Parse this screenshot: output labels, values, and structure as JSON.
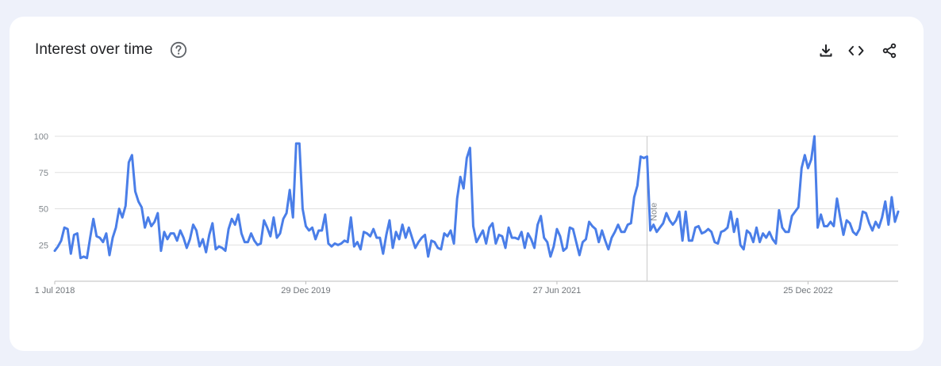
{
  "card": {
    "title": "Interest over time"
  },
  "icons": {
    "help": "help-circle-icon",
    "download": "download-icon",
    "embed": "embed-code-icon",
    "share": "share-icon"
  },
  "colors": {
    "series": "#4a7ee8",
    "grid": "#e0e0e0",
    "axis": "#bdbdbd",
    "background": "#eef1fa",
    "card": "#ffffff"
  },
  "chart_data": {
    "type": "line",
    "title": "Interest over time",
    "xlabel": "",
    "ylabel": "",
    "ylim": [
      0,
      100
    ],
    "yticks": [
      25,
      50,
      75,
      100
    ],
    "x_tick_labels": [
      "1 Jul 2018",
      "29 Dec 2019",
      "27 Jun 2021",
      "25 Dec 2022"
    ],
    "x_start": "2018-07-01",
    "x_interval": "weekly",
    "grid": true,
    "legend": "none",
    "annotations": [
      {
        "label": "Note",
        "x": "2022-01-09"
      }
    ],
    "series": [
      {
        "values": [
          21,
          24,
          28,
          37,
          36,
          19,
          32,
          33,
          16,
          17,
          16,
          30,
          43,
          31,
          30,
          27,
          33,
          18,
          30,
          37,
          50,
          44,
          52,
          82,
          87,
          62,
          55,
          51,
          37,
          44,
          38,
          41,
          47,
          21,
          34,
          29,
          33,
          33,
          28,
          35,
          30,
          23,
          29,
          39,
          35,
          24,
          29,
          20,
          32,
          40,
          22,
          24,
          23,
          21,
          36,
          43,
          39,
          46,
          33,
          27,
          27,
          33,
          28,
          25,
          26,
          42,
          37,
          31,
          44,
          30,
          33,
          43,
          47,
          63,
          44,
          95,
          95,
          50,
          38,
          35,
          37,
          29,
          35,
          35,
          46,
          26,
          24,
          26,
          25,
          26,
          28,
          27,
          44,
          24,
          27,
          22,
          34,
          33,
          31,
          36,
          30,
          30,
          19,
          32,
          42,
          23,
          34,
          29,
          39,
          30,
          37,
          30,
          23,
          27,
          30,
          32,
          17,
          28,
          27,
          23,
          22,
          33,
          31,
          35,
          26,
          57,
          72,
          64,
          85,
          92,
          38,
          27,
          31,
          35,
          26,
          37,
          40,
          26,
          32,
          31,
          23,
          37,
          30,
          30,
          29,
          34,
          23,
          33,
          29,
          23,
          39,
          45,
          30,
          27,
          17,
          24,
          36,
          31,
          21,
          23,
          37,
          36,
          27,
          18,
          27,
          29,
          41,
          38,
          36,
          27,
          35,
          28,
          22,
          30,
          34,
          39,
          34,
          34,
          39,
          40,
          58,
          66,
          86,
          85,
          86,
          35,
          39,
          34,
          37,
          40,
          47,
          42,
          39,
          42,
          48,
          28,
          48,
          28,
          28,
          37,
          38,
          33,
          34,
          36,
          34,
          27,
          26,
          34,
          35,
          37,
          48,
          34,
          43,
          25,
          22,
          35,
          33,
          27,
          37,
          27,
          33,
          30,
          34,
          29,
          26,
          49,
          37,
          34,
          34,
          45,
          48,
          51,
          78,
          87,
          78,
          84,
          100,
          37,
          46,
          38,
          38,
          41,
          38,
          57,
          44,
          32,
          42,
          40,
          34,
          32,
          36,
          48,
          47,
          40,
          35,
          41,
          37,
          44,
          55,
          39,
          58,
          41,
          48
        ]
      }
    ]
  }
}
